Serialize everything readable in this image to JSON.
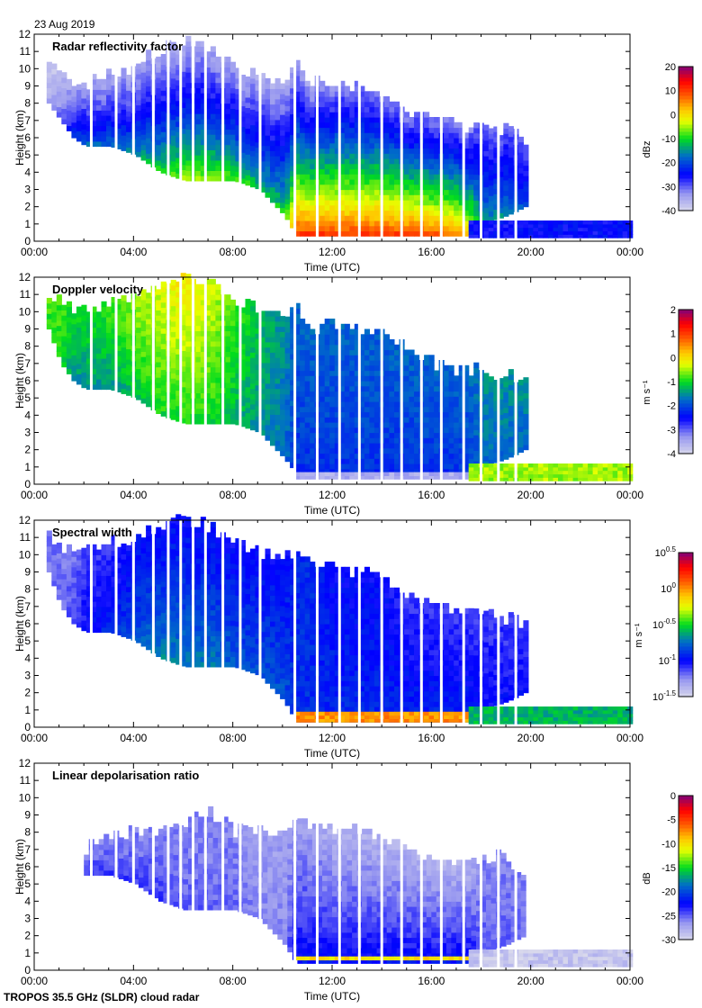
{
  "date_label": "23 Aug 2019",
  "footer": "TROPOS 35.5 GHz (SLDR) cloud radar",
  "chart_data": [
    {
      "type": "heatmap",
      "title": "Radar reflectivity factor",
      "xlabel": "Time (UTC)",
      "ylabel": "Height (km)",
      "xticks": [
        "00:00",
        "04:00",
        "08:00",
        "12:00",
        "16:00",
        "20:00",
        "00:00"
      ],
      "xlim_hours": [
        0,
        24
      ],
      "ylim": [
        0,
        12
      ],
      "yticks": [
        0,
        1,
        2,
        3,
        4,
        5,
        6,
        7,
        8,
        9,
        10,
        11,
        12
      ],
      "colorbar": {
        "units": "dBz",
        "range": [
          -40,
          20
        ],
        "ticks": [
          "20",
          "10",
          "0",
          "-10",
          "-20",
          "-30",
          "-40"
        ]
      },
      "upper_cloud": {
        "time_h": [
          0.5,
          1,
          1.5,
          2,
          3,
          4,
          5,
          6,
          7,
          8,
          9,
          10,
          10.5,
          11,
          12,
          13,
          14,
          15,
          16,
          17,
          17.5,
          18,
          19,
          19.7
        ],
        "top_km": [
          10.5,
          9.5,
          9,
          9,
          9.5,
          10,
          11,
          11.5,
          11,
          10,
          9.5,
          9,
          10,
          9,
          9,
          9,
          8.5,
          7.5,
          7,
          6.5,
          6.5,
          6.5,
          6.3,
          5.5
        ],
        "base_km": [
          8,
          7,
          6,
          5.5,
          5.5,
          5,
          4,
          3.5,
          3.5,
          3.5,
          3,
          1.5,
          0.3,
          0.3,
          0.3,
          0.3,
          0.3,
          0.3,
          0.3,
          0.3,
          0.3,
          1,
          1.5,
          2
        ],
        "value_at_base": [
          -35,
          -30,
          -22,
          -18,
          -18,
          -15,
          -10,
          -5,
          -5,
          -8,
          -12,
          -10,
          10,
          10,
          10,
          10,
          10,
          10,
          8,
          5,
          0,
          -15,
          -15,
          -20
        ],
        "value_at_top": [
          -38,
          -38,
          -35,
          -35,
          -35,
          -35,
          -35,
          -35,
          -35,
          -35,
          -35,
          -35,
          -35,
          -35,
          -32,
          -32,
          -32,
          -32,
          -32,
          -32,
          -32,
          -30,
          -30,
          -30
        ]
      },
      "low_cloud": {
        "time_h": [
          17.5,
          24
        ],
        "top_km": 1.2,
        "base_km": 0.2,
        "value": -25
      },
      "data_gaps_h": [
        2.3,
        3.3,
        4.0,
        4.8,
        5.4,
        5.9,
        6.4,
        6.9,
        7.6,
        8.3,
        9.1,
        10.5,
        11.4,
        12.3,
        13.1,
        14.0,
        14.8,
        15.6,
        16.4,
        17.3,
        18.0,
        18.7,
        19.4
      ]
    },
    {
      "type": "heatmap",
      "title": "Doppler velocity",
      "xlabel": "Time (UTC)",
      "ylabel": "Height (km)",
      "xticks": [
        "00:00",
        "04:00",
        "08:00",
        "12:00",
        "16:00",
        "20:00",
        "00:00"
      ],
      "xlim_hours": [
        0,
        24
      ],
      "ylim": [
        0,
        12
      ],
      "yticks": [
        0,
        1,
        2,
        3,
        4,
        5,
        6,
        7,
        8,
        9,
        10,
        11,
        12
      ],
      "colorbar": {
        "units": "m s⁻¹",
        "range": [
          -4,
          2
        ],
        "ticks": [
          "2",
          "1",
          "0",
          "-1",
          "-2",
          "-3",
          "-4"
        ]
      },
      "upper_cloud": {
        "time_h": [
          0.5,
          1,
          1.5,
          2,
          3,
          4,
          5,
          6,
          7,
          8,
          9,
          10,
          10.5,
          11,
          12,
          13,
          14,
          15,
          16,
          17,
          17.5,
          18,
          19,
          19.7
        ],
        "top_km": [
          10.8,
          10.5,
          10,
          10,
          10.5,
          11,
          11.5,
          11.8,
          11.5,
          10.5,
          10,
          9.5,
          10,
          9,
          9,
          9,
          8.5,
          7.5,
          7,
          6.5,
          6.5,
          6.5,
          6.3,
          6
        ],
        "base_km": [
          9,
          7,
          6,
          5.5,
          5.5,
          5,
          4,
          3.5,
          3.5,
          3.5,
          3,
          1.5,
          0.6,
          0.6,
          0.6,
          0.6,
          0.6,
          0.6,
          0.6,
          0.6,
          0.6,
          1,
          1.5,
          2
        ],
        "value_at_base": [
          -1,
          -1,
          -1.5,
          -1.5,
          -1.5,
          -1.2,
          -1,
          -1,
          -1,
          -1.3,
          -1.5,
          -1.8,
          -2.2,
          -2.2,
          -2.2,
          -2.2,
          -2.2,
          -2.2,
          -2.2,
          -2.2,
          -2,
          -1.8,
          -1.8,
          -1.8
        ],
        "value_at_top": [
          -0.7,
          -0.8,
          -1,
          -1,
          -0.8,
          -0.5,
          -0.3,
          0,
          -0.3,
          -0.8,
          -1.2,
          -1.5,
          -1.8,
          -1.8,
          -1.8,
          -1.8,
          -1.8,
          -1.8,
          -1.8,
          -1.8,
          -1.8,
          -1.5,
          -1.5,
          -1.5
        ]
      },
      "surface_band": {
        "time_h": [
          10.5,
          17.5
        ],
        "top_km": 0.6,
        "base_km": 0.3,
        "value": -3.5
      },
      "low_cloud": {
        "time_h": [
          17.5,
          24
        ],
        "top_km": 1.2,
        "base_km": 0.2,
        "value": -0.5
      },
      "data_gaps_h": [
        2.3,
        3.3,
        4.0,
        4.8,
        5.4,
        5.9,
        6.4,
        6.9,
        7.6,
        8.3,
        9.1,
        10.5,
        11.4,
        12.3,
        13.1,
        14.0,
        14.8,
        15.6,
        16.4,
        17.3,
        18.0,
        18.7,
        19.4
      ]
    },
    {
      "type": "heatmap",
      "title": "Spectral width",
      "xlabel": "Time (UTC)",
      "ylabel": "Height (km)",
      "xticks": [
        "00:00",
        "04:00",
        "08:00",
        "12:00",
        "16:00",
        "20:00",
        "00:00"
      ],
      "xlim_hours": [
        0,
        24
      ],
      "ylim": [
        0,
        12
      ],
      "yticks": [
        0,
        1,
        2,
        3,
        4,
        5,
        6,
        7,
        8,
        9,
        10,
        11,
        12
      ],
      "colorbar": {
        "units": "m s⁻¹",
        "scale": "log10",
        "range": [
          -1.5,
          0.5
        ],
        "ticks": [
          {
            "base": "10",
            "exp": "0.5"
          },
          {
            "base": "10",
            "exp": "0"
          },
          {
            "base": "10",
            "exp": "-0.5"
          },
          {
            "base": "10",
            "exp": "-1"
          },
          {
            "base": "10",
            "exp": "-1.5"
          }
        ]
      },
      "upper_cloud": {
        "time_h": [
          0.5,
          1,
          1.5,
          2,
          3,
          4,
          5,
          6,
          7,
          8,
          9,
          10,
          10.5,
          11,
          12,
          13,
          14,
          15,
          16,
          17,
          17.5,
          18,
          19,
          19.7
        ],
        "top_km": [
          10.8,
          10.5,
          10,
          10,
          10.5,
          11,
          11.5,
          11.8,
          11.5,
          10.5,
          10,
          9.5,
          10,
          9.5,
          9.3,
          9,
          8.5,
          7.5,
          7,
          6.5,
          6.5,
          6.5,
          6.3,
          6
        ],
        "base_km": [
          9,
          7,
          6,
          5.5,
          5.5,
          5,
          4,
          3.5,
          3.5,
          3.5,
          3,
          1.5,
          0.3,
          0.3,
          0.3,
          0.3,
          0.3,
          0.3,
          0.3,
          0.3,
          0.3,
          1,
          1.5,
          2
        ],
        "value_at_base": [
          -1.2,
          -1.2,
          -1.1,
          -1,
          -0.9,
          -0.8,
          -0.7,
          -0.7,
          -0.7,
          -0.8,
          -0.8,
          -0.8,
          -0.9,
          -0.9,
          -0.9,
          -0.9,
          -0.9,
          -0.9,
          -0.9,
          -0.9,
          -0.9,
          -1,
          -1,
          -1
        ],
        "value_at_top": [
          -1.2,
          -1.2,
          -1.2,
          -1.1,
          -1.1,
          -1,
          -1,
          -1,
          -1,
          -1,
          -1,
          -1,
          -0.9,
          -0.9,
          -1,
          -1,
          -1,
          -1.1,
          -1.1,
          -1.1,
          -1.1,
          -1.1,
          -1.1,
          -1.1
        ]
      },
      "surface_band": {
        "time_h": [
          10.5,
          17.5
        ],
        "top_km": 0.8,
        "base_km": 0.3,
        "value": 0.0
      },
      "low_cloud": {
        "time_h": [
          17.5,
          24
        ],
        "top_km": 1.2,
        "base_km": 0.2,
        "value": -0.6
      },
      "data_gaps_h": [
        2.3,
        3.3,
        4.0,
        4.8,
        5.4,
        5.9,
        6.4,
        6.9,
        7.6,
        8.3,
        9.1,
        10.5,
        11.4,
        12.3,
        13.1,
        14.0,
        14.8,
        15.6,
        16.4,
        17.3,
        18.0,
        18.7,
        19.4
      ]
    },
    {
      "type": "heatmap",
      "title": "Linear depolarisation ratio",
      "xlabel": "Time (UTC)",
      "ylabel": "Height (km)",
      "xticks": [
        "00:00",
        "04:00",
        "08:00",
        "12:00",
        "16:00",
        "20:00",
        "00:00"
      ],
      "xlim_hours": [
        0,
        24
      ],
      "ylim": [
        0,
        12
      ],
      "yticks": [
        0,
        1,
        2,
        3,
        4,
        5,
        6,
        7,
        8,
        9,
        10,
        11,
        12
      ],
      "colorbar": {
        "units": "dB",
        "range": [
          -30,
          0
        ],
        "ticks": [
          "0",
          "-5",
          "-10",
          "-15",
          "-20",
          "-25",
          "-30"
        ]
      },
      "upper_cloud": {
        "time_h": [
          2,
          3,
          4,
          5,
          6,
          7,
          8,
          9,
          10,
          10.5,
          11,
          12,
          13,
          14,
          15,
          16,
          17,
          17.5,
          18,
          19,
          19.7
        ],
        "top_km": [
          7,
          7.5,
          8,
          8,
          8.5,
          9,
          8,
          8,
          7.5,
          9,
          8.5,
          8,
          8,
          7.5,
          7,
          6.5,
          6,
          6,
          6.5,
          6.3,
          5.5
        ],
        "base_km": [
          5.5,
          5.5,
          5,
          4,
          3.5,
          3.5,
          3.5,
          3,
          1.5,
          0.4,
          0.4,
          0.4,
          0.4,
          0.4,
          0.4,
          0.4,
          0.4,
          0.4,
          1,
          1.5,
          2
        ],
        "value_at_base": [
          -24,
          -24,
          -24,
          -24,
          -25,
          -25,
          -25,
          -26,
          -26,
          -22,
          -22,
          -22,
          -22,
          -22,
          -22,
          -22,
          -22,
          -22,
          -25,
          -25,
          -25
        ],
        "value_at_top": [
          -26,
          -26,
          -26,
          -26,
          -26,
          -26,
          -26,
          -27,
          -27,
          -27,
          -27,
          -28,
          -28,
          -28,
          -28,
          -28,
          -28,
          -28,
          -26,
          -26,
          -26
        ]
      },
      "surface_band": {
        "time_h": [
          10.5,
          17.5
        ],
        "top_km": 0.8,
        "base_km": 0.6,
        "value": -10
      },
      "low_cloud": {
        "time_h": [
          17.5,
          24
        ],
        "top_km": 1.2,
        "base_km": 0.2,
        "value": -29
      },
      "data_gaps_h": [
        2.3,
        3.3,
        4.0,
        4.8,
        5.4,
        5.9,
        6.4,
        6.9,
        7.6,
        8.3,
        9.1,
        10.5,
        11.4,
        12.3,
        13.1,
        14.0,
        14.8,
        15.6,
        16.4,
        17.3,
        18.0,
        18.7,
        19.4
      ]
    }
  ]
}
